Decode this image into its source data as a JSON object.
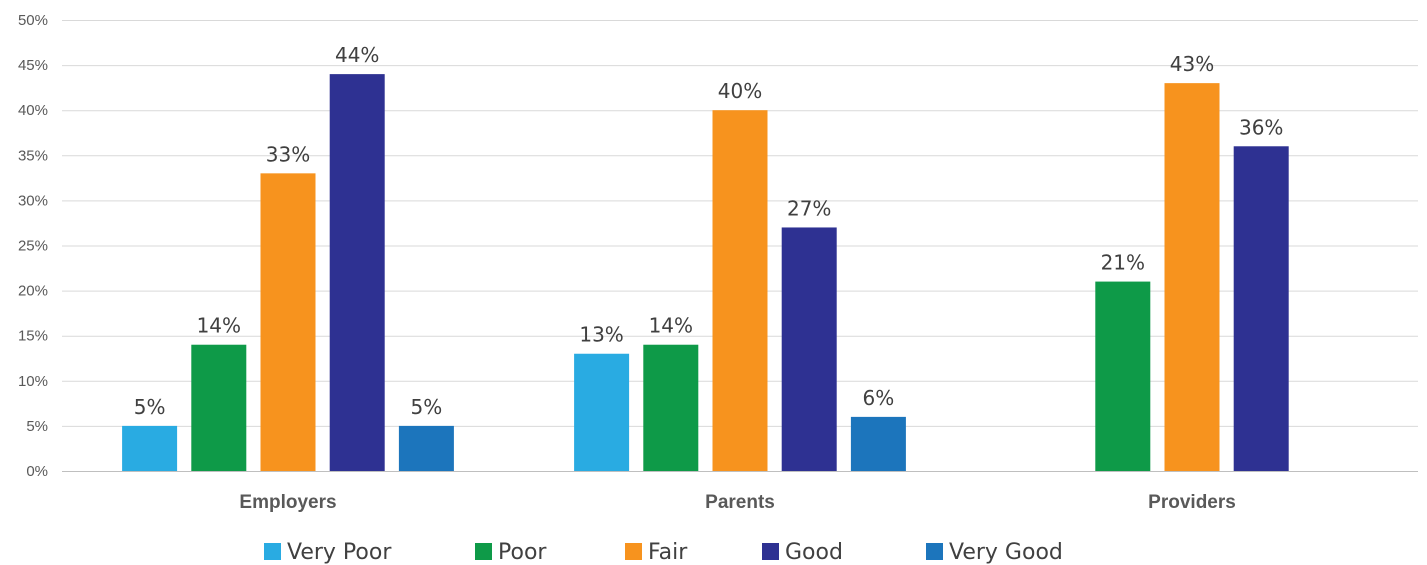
{
  "chart_data": {
    "type": "bar",
    "categories": [
      "Employers",
      "Parents",
      "Providers"
    ],
    "series": [
      {
        "name": "Very Poor",
        "color": "#29abe2",
        "values": [
          5,
          13,
          null
        ],
        "labels": [
          "5%",
          "13%",
          ""
        ]
      },
      {
        "name": "Poor",
        "color": "#0e9a48",
        "values": [
          14,
          14,
          21
        ],
        "labels": [
          "14%",
          "14%",
          "21%"
        ]
      },
      {
        "name": "Fair",
        "color": "#f7931e",
        "values": [
          33,
          40,
          43
        ],
        "labels": [
          "33%",
          "40%",
          "43%"
        ]
      },
      {
        "name": "Good",
        "color": "#2e3192",
        "values": [
          44,
          27,
          36
        ],
        "labels": [
          "44%",
          "27%",
          "36%"
        ]
      },
      {
        "name": "Very Good",
        "color": "#1c75bc",
        "values": [
          5,
          6,
          null
        ],
        "labels": [
          "5%",
          "6%",
          ""
        ]
      }
    ],
    "ylim": [
      0,
      50
    ],
    "yticks": [
      "0%",
      "5%",
      "10%",
      "15%",
      "20%",
      "25%",
      "30%",
      "35%",
      "40%",
      "45%",
      "50%"
    ],
    "grid": true,
    "legend_position": "bottom",
    "title": "",
    "xlabel": "",
    "ylabel": ""
  }
}
